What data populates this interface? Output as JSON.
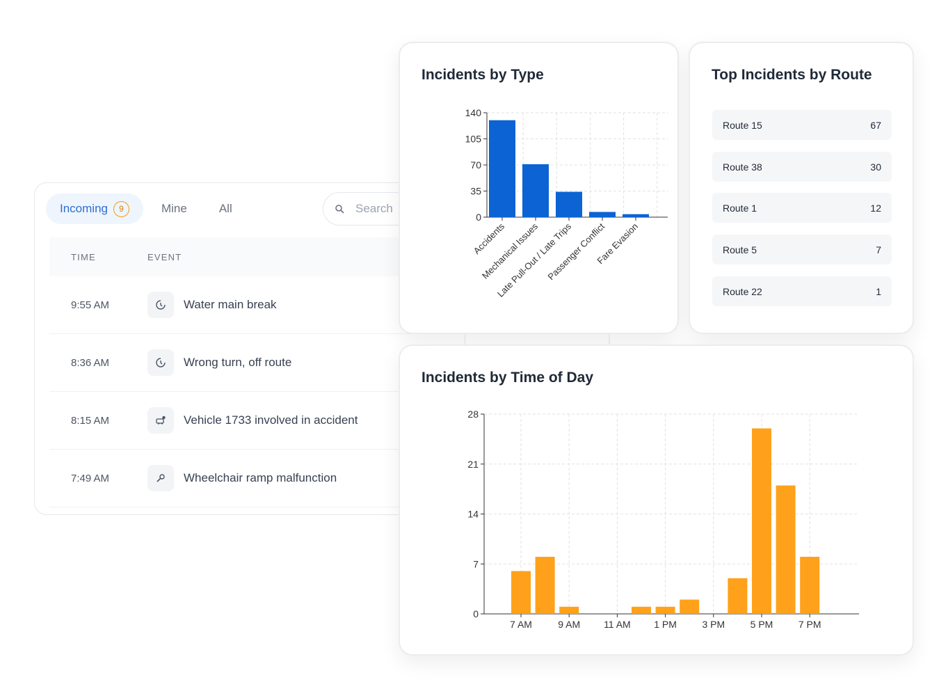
{
  "list": {
    "tabs": [
      {
        "label": "Incoming",
        "count": "9"
      },
      {
        "label": "Mine"
      },
      {
        "label": "All"
      }
    ],
    "search_placeholder": "Search",
    "columns": [
      "TIME",
      "EVENT"
    ],
    "rows": [
      {
        "time": "9:55 AM",
        "event": "Water main break",
        "icon": "clock-icon"
      },
      {
        "time": "8:36 AM",
        "event": "Wrong turn, off route",
        "icon": "clock-icon"
      },
      {
        "time": "8:15 AM",
        "event": "Vehicle 1733 involved in accident",
        "icon": "vehicle-accident-icon"
      },
      {
        "time": "7:49 AM",
        "event": "Wheelchair ramp malfunction",
        "icon": "wrench-icon"
      }
    ]
  },
  "routes": {
    "title": "Top Incidents by Route",
    "items": [
      {
        "name": "Route 15",
        "count": "67"
      },
      {
        "name": "Route 38",
        "count": "30"
      },
      {
        "name": "Route 1",
        "count": "12"
      },
      {
        "name": "Route 5",
        "count": "7"
      },
      {
        "name": "Route 22",
        "count": "1"
      }
    ]
  },
  "colors": {
    "type_bar": "#0b63d4",
    "time_bar": "#ffa11a",
    "tab_active": "#2f6fd0",
    "badge": "#f39c12"
  },
  "chart_data": [
    {
      "type": "bar",
      "title": "Incidents by Type",
      "categories": [
        "Accidents",
        "Mechanical Issues",
        "Late Pull-Out / Late Trips",
        "Passenger Conflict",
        "Fare Evasion"
      ],
      "values": [
        130,
        71,
        34,
        7,
        4
      ],
      "ylim": [
        0,
        140
      ],
      "yticks": [
        0,
        35,
        70,
        105,
        140
      ],
      "grid": true
    },
    {
      "type": "bar",
      "title": "Incidents by Time of Day",
      "categories": [
        "7 AM",
        "8 AM",
        "9 AM",
        "10 AM",
        "11 AM",
        "12 PM",
        "1 PM",
        "2 PM",
        "3 PM",
        "4 PM",
        "5 PM",
        "6 PM",
        "7 PM"
      ],
      "tick_labels": [
        "7 AM",
        "9 AM",
        "11 AM",
        "1 PM",
        "3 PM",
        "5 PM",
        "7 PM"
      ],
      "values": [
        6,
        8,
        1,
        0,
        0,
        1,
        1,
        2,
        0,
        5,
        26,
        18,
        8
      ],
      "ylim": [
        0,
        28
      ],
      "yticks": [
        0,
        7,
        14,
        21,
        28
      ],
      "grid": true
    }
  ]
}
